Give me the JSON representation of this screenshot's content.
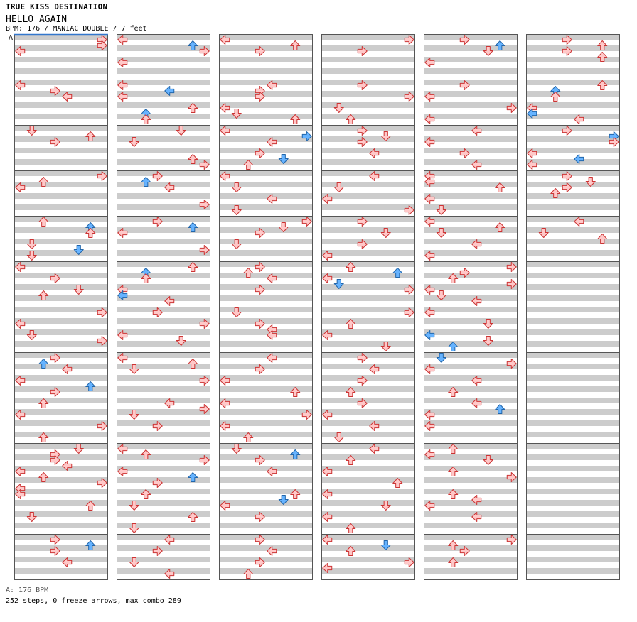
{
  "header": {
    "series": "TRUE KISS DESTINATION",
    "song": "HELLO AGAIN",
    "info": "BPM: 176 / MANIAC DOUBLE / 7 feet",
    "bpm_marker": "A"
  },
  "footer": {
    "bpm_legend": "A: 176 BPM",
    "stats": "252 steps, 0 freeze arrows, max combo 289"
  },
  "colors": {
    "band_gray": "#cccccc",
    "arrow_red_fill": "#ffc8c8",
    "arrow_red_stroke": "#cc3333",
    "arrow_blue_fill": "#66b3ff",
    "arrow_blue_stroke": "#2266aa",
    "start_line": "#3377cc"
  },
  "chart": {
    "columns": 6,
    "measures_per_column": 12,
    "lanes": [
      "P1-left",
      "P1-down",
      "P1-up",
      "P1-right",
      "P2-left",
      "P2-down",
      "P2-up",
      "P2-right"
    ],
    "note_code_legend": "l=left d=down u=up r=right, uppercase=blue arrow",
    "notes": [
      [
        0,
        0,
        0,
        "r"
      ],
      [
        0,
        0,
        1,
        "r"
      ],
      [
        0,
        0,
        2,
        "l"
      ],
      [
        0,
        1,
        0,
        "l"
      ],
      [
        0,
        1,
        1,
        "r"
      ],
      [
        0,
        1,
        2,
        "l"
      ],
      [
        0,
        2,
        0,
        "d"
      ],
      [
        0,
        2,
        1,
        "u"
      ],
      [
        0,
        2,
        2,
        "r"
      ],
      [
        0,
        3,
        0,
        "r"
      ],
      [
        0,
        3,
        1,
        "u"
      ],
      [
        0,
        3,
        2,
        "l"
      ],
      [
        0,
        4,
        0,
        "u"
      ],
      [
        0,
        4,
        1,
        "U"
      ],
      [
        0,
        4,
        2,
        "u"
      ],
      [
        0,
        4,
        4,
        "d"
      ],
      [
        0,
        4,
        5,
        "D"
      ],
      [
        0,
        4,
        6,
        "d"
      ],
      [
        0,
        5,
        0,
        "l"
      ],
      [
        0,
        5,
        2,
        "r"
      ],
      [
        0,
        5,
        4,
        "d"
      ],
      [
        0,
        5,
        5,
        "u"
      ],
      [
        0,
        6,
        0,
        "r"
      ],
      [
        0,
        6,
        2,
        "l"
      ],
      [
        0,
        6,
        4,
        "d"
      ],
      [
        0,
        6,
        5,
        "r"
      ],
      [
        0,
        7,
        0,
        "r"
      ],
      [
        0,
        7,
        1,
        "U"
      ],
      [
        0,
        7,
        2,
        "l"
      ],
      [
        0,
        7,
        4,
        "l"
      ],
      [
        0,
        7,
        5,
        "U"
      ],
      [
        0,
        7,
        6,
        "r"
      ],
      [
        0,
        8,
        0,
        "u"
      ],
      [
        0,
        8,
        2,
        "l"
      ],
      [
        0,
        8,
        4,
        "r"
      ],
      [
        0,
        8,
        6,
        "u"
      ],
      [
        0,
        9,
        0,
        "d"
      ],
      [
        0,
        9,
        1,
        "r"
      ],
      [
        0,
        9,
        2,
        "r"
      ],
      [
        0,
        9,
        3,
        "l"
      ],
      [
        0,
        9,
        4,
        "l"
      ],
      [
        0,
        9,
        5,
        "u"
      ],
      [
        0,
        9,
        6,
        "r"
      ],
      [
        0,
        9,
        7,
        "l"
      ],
      [
        0,
        10,
        0,
        "l"
      ],
      [
        0,
        10,
        2,
        "u"
      ],
      [
        0,
        10,
        4,
        "d"
      ],
      [
        0,
        11,
        0,
        "r"
      ],
      [
        0,
        11,
        1,
        "U"
      ],
      [
        0,
        11,
        2,
        "r"
      ],
      [
        0,
        11,
        4,
        "l"
      ],
      [
        1,
        0,
        0,
        "l"
      ],
      [
        1,
        0,
        1,
        "U"
      ],
      [
        1,
        0,
        2,
        "r"
      ],
      [
        1,
        0,
        4,
        "l"
      ],
      [
        1,
        1,
        0,
        "l"
      ],
      [
        1,
        1,
        1,
        "L"
      ],
      [
        1,
        1,
        2,
        "l"
      ],
      [
        1,
        1,
        4,
        "u"
      ],
      [
        1,
        1,
        5,
        "U"
      ],
      [
        1,
        1,
        6,
        "u"
      ],
      [
        1,
        2,
        0,
        "d"
      ],
      [
        1,
        2,
        2,
        "d"
      ],
      [
        1,
        2,
        5,
        "u"
      ],
      [
        1,
        2,
        6,
        "r"
      ],
      [
        1,
        3,
        0,
        "r"
      ],
      [
        1,
        3,
        1,
        "U"
      ],
      [
        1,
        3,
        2,
        "l"
      ],
      [
        1,
        3,
        5,
        "r"
      ],
      [
        1,
        4,
        0,
        "r"
      ],
      [
        1,
        4,
        1,
        "U"
      ],
      [
        1,
        4,
        2,
        "l"
      ],
      [
        1,
        4,
        5,
        "r"
      ],
      [
        1,
        5,
        0,
        "u"
      ],
      [
        1,
        5,
        1,
        "U"
      ],
      [
        1,
        5,
        2,
        "u"
      ],
      [
        1,
        5,
        4,
        "l"
      ],
      [
        1,
        5,
        5,
        "L"
      ],
      [
        1,
        5,
        6,
        "l"
      ],
      [
        1,
        6,
        0,
        "r"
      ],
      [
        1,
        6,
        2,
        "r"
      ],
      [
        1,
        6,
        4,
        "l"
      ],
      [
        1,
        6,
        5,
        "d"
      ],
      [
        1,
        7,
        0,
        "l"
      ],
      [
        1,
        7,
        1,
        "u"
      ],
      [
        1,
        7,
        2,
        "d"
      ],
      [
        1,
        7,
        4,
        "r"
      ],
      [
        1,
        8,
        0,
        "l"
      ],
      [
        1,
        8,
        1,
        "r"
      ],
      [
        1,
        8,
        2,
        "d"
      ],
      [
        1,
        8,
        4,
        "r"
      ],
      [
        1,
        9,
        0,
        "l"
      ],
      [
        1,
        9,
        1,
        "u"
      ],
      [
        1,
        9,
        2,
        "r"
      ],
      [
        1,
        9,
        4,
        "l"
      ],
      [
        1,
        9,
        5,
        "U"
      ],
      [
        1,
        9,
        6,
        "r"
      ],
      [
        1,
        10,
        0,
        "u"
      ],
      [
        1,
        10,
        2,
        "d"
      ],
      [
        1,
        10,
        4,
        "u"
      ],
      [
        1,
        10,
        6,
        "d"
      ],
      [
        1,
        11,
        0,
        "l"
      ],
      [
        1,
        11,
        2,
        "r"
      ],
      [
        1,
        11,
        4,
        "d"
      ],
      [
        1,
        11,
        6,
        "l"
      ],
      [
        2,
        0,
        0,
        "l"
      ],
      [
        2,
        0,
        1,
        "u"
      ],
      [
        2,
        0,
        2,
        "r"
      ],
      [
        2,
        1,
        0,
        "l"
      ],
      [
        2,
        1,
        1,
        "r"
      ],
      [
        2,
        1,
        2,
        "r"
      ],
      [
        2,
        1,
        4,
        "l"
      ],
      [
        2,
        1,
        5,
        "d"
      ],
      [
        2,
        1,
        6,
        "u"
      ],
      [
        2,
        2,
        0,
        "l"
      ],
      [
        2,
        2,
        1,
        "R"
      ],
      [
        2,
        2,
        2,
        "l"
      ],
      [
        2,
        2,
        4,
        "r"
      ],
      [
        2,
        2,
        5,
        "D"
      ],
      [
        2,
        2,
        6,
        "u"
      ],
      [
        2,
        3,
        0,
        "l"
      ],
      [
        2,
        3,
        2,
        "d"
      ],
      [
        2,
        3,
        4,
        "l"
      ],
      [
        2,
        3,
        6,
        "d"
      ],
      [
        2,
        4,
        0,
        "r"
      ],
      [
        2,
        4,
        1,
        "d"
      ],
      [
        2,
        4,
        2,
        "r"
      ],
      [
        2,
        4,
        4,
        "d"
      ],
      [
        2,
        5,
        0,
        "r"
      ],
      [
        2,
        5,
        1,
        "u"
      ],
      [
        2,
        5,
        2,
        "l"
      ],
      [
        2,
        5,
        4,
        "r"
      ],
      [
        2,
        6,
        0,
        "d"
      ],
      [
        2,
        6,
        2,
        "r"
      ],
      [
        2,
        6,
        3,
        "l"
      ],
      [
        2,
        6,
        4,
        "l"
      ],
      [
        2,
        7,
        0,
        "l"
      ],
      [
        2,
        7,
        2,
        "r"
      ],
      [
        2,
        7,
        4,
        "l"
      ],
      [
        2,
        7,
        6,
        "u"
      ],
      [
        2,
        8,
        0,
        "l"
      ],
      [
        2,
        8,
        2,
        "r"
      ],
      [
        2,
        8,
        4,
        "l"
      ],
      [
        2,
        8,
        6,
        "u"
      ],
      [
        2,
        9,
        0,
        "d"
      ],
      [
        2,
        9,
        1,
        "U"
      ],
      [
        2,
        9,
        2,
        "r"
      ],
      [
        2,
        9,
        4,
        "l"
      ],
      [
        2,
        10,
        0,
        "u"
      ],
      [
        2,
        10,
        1,
        "D"
      ],
      [
        2,
        10,
        2,
        "l"
      ],
      [
        2,
        10,
        4,
        "r"
      ],
      [
        2,
        11,
        0,
        "r"
      ],
      [
        2,
        11,
        2,
        "l"
      ],
      [
        2,
        11,
        4,
        "r"
      ],
      [
        2,
        11,
        6,
        "u"
      ],
      [
        3,
        0,
        0,
        "r"
      ],
      [
        3,
        0,
        2,
        "r"
      ],
      [
        3,
        1,
        0,
        "r"
      ],
      [
        3,
        1,
        2,
        "r"
      ],
      [
        3,
        1,
        4,
        "d"
      ],
      [
        3,
        1,
        6,
        "u"
      ],
      [
        3,
        2,
        0,
        "r"
      ],
      [
        3,
        2,
        1,
        "d"
      ],
      [
        3,
        2,
        2,
        "r"
      ],
      [
        3,
        2,
        4,
        "l"
      ],
      [
        3,
        3,
        0,
        "l"
      ],
      [
        3,
        3,
        2,
        "d"
      ],
      [
        3,
        3,
        4,
        "l"
      ],
      [
        3,
        3,
        6,
        "r"
      ],
      [
        3,
        4,
        0,
        "r"
      ],
      [
        3,
        4,
        2,
        "d"
      ],
      [
        3,
        4,
        4,
        "r"
      ],
      [
        3,
        4,
        6,
        "l"
      ],
      [
        3,
        5,
        0,
        "u"
      ],
      [
        3,
        5,
        1,
        "U"
      ],
      [
        3,
        5,
        2,
        "l"
      ],
      [
        3,
        5,
        3,
        "D"
      ],
      [
        3,
        5,
        4,
        "r"
      ],
      [
        3,
        6,
        0,
        "r"
      ],
      [
        3,
        6,
        2,
        "u"
      ],
      [
        3,
        6,
        4,
        "l"
      ],
      [
        3,
        6,
        6,
        "d"
      ],
      [
        3,
        7,
        0,
        "r"
      ],
      [
        3,
        7,
        2,
        "l"
      ],
      [
        3,
        7,
        4,
        "r"
      ],
      [
        3,
        7,
        6,
        "u"
      ],
      [
        3,
        8,
        0,
        "r"
      ],
      [
        3,
        8,
        2,
        "l"
      ],
      [
        3,
        8,
        4,
        "l"
      ],
      [
        3,
        8,
        6,
        "d"
      ],
      [
        3,
        9,
        0,
        "l"
      ],
      [
        3,
        9,
        2,
        "u"
      ],
      [
        3,
        9,
        4,
        "l"
      ],
      [
        3,
        9,
        6,
        "u"
      ],
      [
        3,
        10,
        0,
        "l"
      ],
      [
        3,
        10,
        2,
        "d"
      ],
      [
        3,
        10,
        4,
        "l"
      ],
      [
        3,
        10,
        6,
        "u"
      ],
      [
        3,
        11,
        0,
        "l"
      ],
      [
        3,
        11,
        1,
        "D"
      ],
      [
        3,
        11,
        2,
        "u"
      ],
      [
        3,
        11,
        4,
        "r"
      ],
      [
        3,
        11,
        5,
        "l"
      ],
      [
        4,
        0,
        0,
        "r"
      ],
      [
        4,
        0,
        1,
        "U"
      ],
      [
        4,
        0,
        2,
        "d"
      ],
      [
        4,
        0,
        4,
        "l"
      ],
      [
        4,
        1,
        0,
        "r"
      ],
      [
        4,
        1,
        2,
        "l"
      ],
      [
        4,
        1,
        4,
        "r"
      ],
      [
        4,
        1,
        6,
        "l"
      ],
      [
        4,
        2,
        0,
        "l"
      ],
      [
        4,
        2,
        2,
        "l"
      ],
      [
        4,
        2,
        4,
        "r"
      ],
      [
        4,
        2,
        6,
        "l"
      ],
      [
        4,
        3,
        0,
        "l"
      ],
      [
        4,
        3,
        1,
        "l"
      ],
      [
        4,
        3,
        2,
        "u"
      ],
      [
        4,
        3,
        4,
        "l"
      ],
      [
        4,
        3,
        6,
        "d"
      ],
      [
        4,
        4,
        0,
        "l"
      ],
      [
        4,
        4,
        1,
        "u"
      ],
      [
        4,
        4,
        2,
        "d"
      ],
      [
        4,
        4,
        4,
        "l"
      ],
      [
        4,
        4,
        6,
        "l"
      ],
      [
        4,
        5,
        0,
        "r"
      ],
      [
        4,
        5,
        1,
        "r"
      ],
      [
        4,
        5,
        2,
        "u"
      ],
      [
        4,
        5,
        3,
        "r"
      ],
      [
        4,
        5,
        4,
        "l"
      ],
      [
        4,
        5,
        5,
        "d"
      ],
      [
        4,
        5,
        6,
        "l"
      ],
      [
        4,
        6,
        0,
        "l"
      ],
      [
        4,
        6,
        2,
        "d"
      ],
      [
        4,
        6,
        4,
        "L"
      ],
      [
        4,
        6,
        5,
        "d"
      ],
      [
        4,
        6,
        6,
        "U"
      ],
      [
        4,
        7,
        0,
        "D"
      ],
      [
        4,
        7,
        1,
        "r"
      ],
      [
        4,
        7,
        2,
        "l"
      ],
      [
        4,
        7,
        4,
        "l"
      ],
      [
        4,
        7,
        6,
        "u"
      ],
      [
        4,
        8,
        0,
        "l"
      ],
      [
        4,
        8,
        1,
        "U"
      ],
      [
        4,
        8,
        2,
        "l"
      ],
      [
        4,
        8,
        4,
        "l"
      ],
      [
        4,
        9,
        0,
        "u"
      ],
      [
        4,
        9,
        1,
        "l"
      ],
      [
        4,
        9,
        2,
        "d"
      ],
      [
        4,
        9,
        4,
        "u"
      ],
      [
        4,
        9,
        5,
        "r"
      ],
      [
        4,
        10,
        0,
        "u"
      ],
      [
        4,
        10,
        1,
        "l"
      ],
      [
        4,
        10,
        2,
        "l"
      ],
      [
        4,
        10,
        4,
        "l"
      ],
      [
        4,
        11,
        0,
        "r"
      ],
      [
        4,
        11,
        1,
        "u"
      ],
      [
        4,
        11,
        2,
        "r"
      ],
      [
        4,
        11,
        4,
        "u"
      ],
      [
        5,
        0,
        0,
        "r"
      ],
      [
        5,
        0,
        1,
        "u"
      ],
      [
        5,
        0,
        2,
        "r"
      ],
      [
        5,
        0,
        3,
        "u"
      ],
      [
        5,
        1,
        0,
        "u"
      ],
      [
        5,
        1,
        1,
        "U"
      ],
      [
        5,
        1,
        2,
        "u"
      ],
      [
        5,
        1,
        4,
        "l"
      ],
      [
        5,
        1,
        5,
        "L"
      ],
      [
        5,
        1,
        6,
        "l"
      ],
      [
        5,
        2,
        0,
        "r"
      ],
      [
        5,
        2,
        1,
        "R"
      ],
      [
        5,
        2,
        2,
        "r"
      ],
      [
        5,
        2,
        4,
        "l"
      ],
      [
        5,
        2,
        5,
        "L"
      ],
      [
        5,
        2,
        6,
        "l"
      ],
      [
        5,
        3,
        0,
        "r"
      ],
      [
        5,
        3,
        1,
        "d"
      ],
      [
        5,
        3,
        2,
        "r"
      ],
      [
        5,
        3,
        3,
        "u"
      ],
      [
        5,
        4,
        0,
        "l"
      ],
      [
        5,
        4,
        2,
        "d"
      ],
      [
        5,
        4,
        3,
        "u"
      ]
    ]
  }
}
